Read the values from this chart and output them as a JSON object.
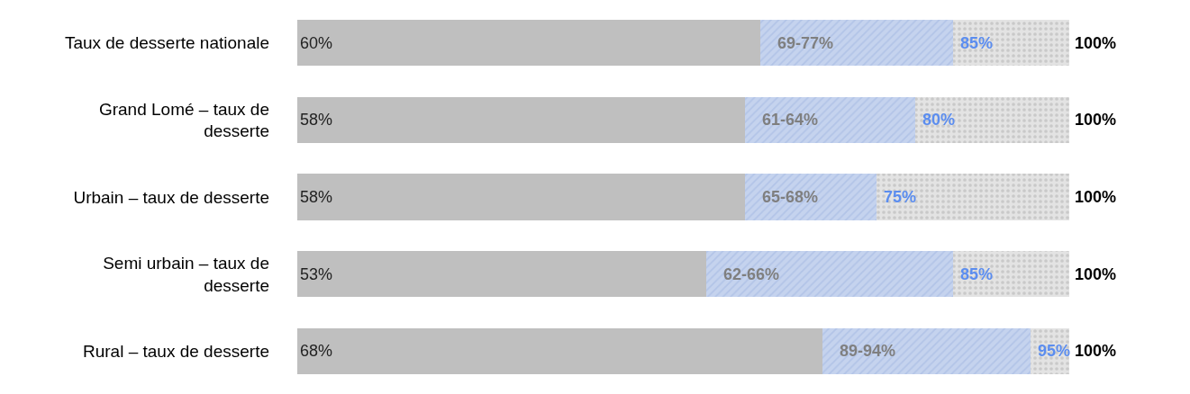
{
  "chart_data": {
    "type": "bar",
    "orientation": "horizontal",
    "stacked": true,
    "tick_labels": "y",
    "categories": [
      "Taux de desserte nationale",
      "Grand Lomé – taux de desserte",
      "Urbain – taux de desserte",
      "Semi urbain – taux de desserte",
      "Rural – taux de desserte"
    ],
    "series": [
      {
        "color": "#bfbfbf",
        "values": [
          60,
          58,
          58,
          53,
          68
        ],
        "value_labels": [
          "60%",
          "58%",
          "58%",
          "53%",
          "68%"
        ]
      },
      {
        "color": "#c5d3ee",
        "values": [
          25,
          22,
          17,
          32,
          27
        ]
      },
      {
        "color": "#e3e3e3",
        "values": [
          15,
          20,
          25,
          15,
          5
        ]
      }
    ],
    "annotations": [
      "69-77%",
      "61-64%",
      "65-68%",
      "62-66%",
      "89-94%",
      {
        "text": "85%",
        "x": 85,
        "y": "Taux de desserte nationale"
      },
      {
        "text": "80%",
        "x": 80,
        "y": "Grand Lomé – taux de desserte"
      },
      {
        "text": "75%",
        "x": 75,
        "y": "Urbain – taux de desserte"
      },
      {
        "text": "85%",
        "x": 85,
        "y": "Semi urbain – taux de desserte"
      },
      {
        "text": "95%",
        "x": 95,
        "y": "Rural – taux de desserte"
      },
      {
        "text": "100%",
        "x": 100,
        "y": "Taux de desserte nationale"
      },
      {
        "text": "100%",
        "x": 100,
        "y": "Grand Lomé – taux de desserte"
      },
      {
        "text": "100%",
        "x": 100,
        "y": "Urbain – taux de desserte"
      },
      {
        "text": "100%",
        "x": 100,
        "y": "Semi urbain – taux de desserte"
      },
      {
        "text": "100%",
        "x": 100,
        "y": "Rural – taux de desserte"
      }
    ]
  }
}
